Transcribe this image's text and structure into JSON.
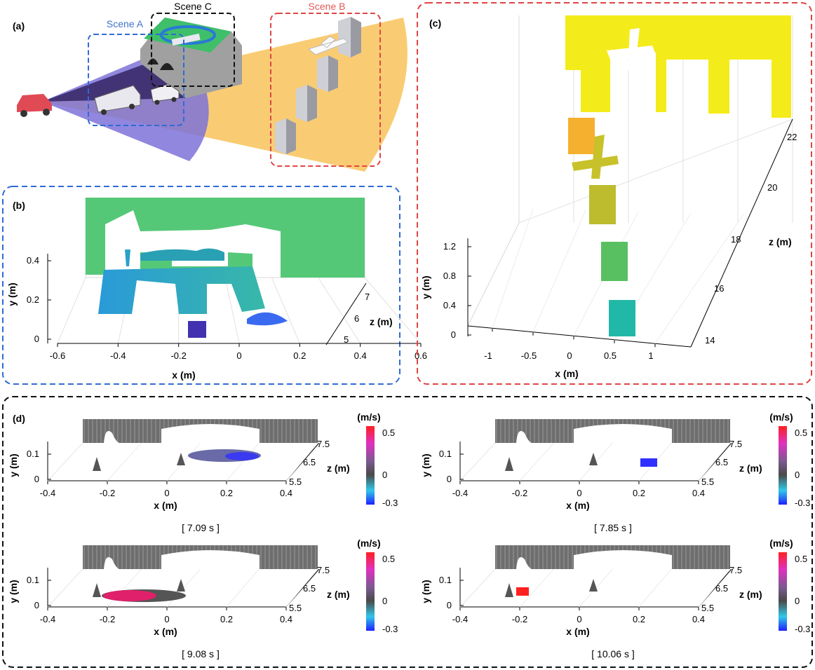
{
  "colors": {
    "blue_frame": "#2f6bd6",
    "red_frame": "#e04545",
    "black_frame": "#111111",
    "purple_beam": "#7e72d8",
    "yellow_beam": "#f8c35a",
    "scene_a_label": "#3f73cc",
    "scene_b_label": "#e05a5a"
  },
  "panel_a": {
    "tag": "(a)",
    "scene_a_label": "Scene A",
    "scene_b_label": "Scene B",
    "scene_c_label": "Scene C"
  },
  "panel_b": {
    "tag": "(b)",
    "chart_data": {
      "type": "scatter",
      "title": "",
      "xlabel": "x (m)",
      "ylabel": "y (m)",
      "zlabel": "z (m)",
      "x_ticks": [
        "-0.6",
        "-0.4",
        "-0.2",
        "0",
        "0.2",
        "0.4",
        "0.6"
      ],
      "y_ticks": [
        "0",
        "0.2",
        "0.4"
      ],
      "z_ticks": [
        "5",
        "6",
        "7"
      ],
      "xlim": [
        -0.65,
        0.7
      ],
      "ylim": [
        0,
        0.45
      ],
      "zlim": [
        4.8,
        7.2
      ],
      "grid": true
    }
  },
  "panel_c": {
    "tag": "(c)",
    "chart_data": {
      "type": "scatter",
      "title": "",
      "xlabel": "x (m)",
      "ylabel": "y (m)",
      "zlabel": "z (m)",
      "x_ticks": [
        "-1",
        "-0.5",
        "0",
        "0.5",
        "1"
      ],
      "y_ticks": [
        "0",
        "0.4",
        "0.8",
        "1.2"
      ],
      "z_ticks": [
        "14",
        "16",
        "18",
        "20",
        "22"
      ],
      "xlim": [
        -1.3,
        1.3
      ],
      "ylim": [
        0,
        1.3
      ],
      "zlim": [
        13.5,
        23
      ],
      "grid": true
    }
  },
  "panel_d": {
    "tag": "(d)",
    "colorbar_label": "(m/s)",
    "colorbar_ticks": [
      "0.5",
      "0",
      "-0.3"
    ],
    "colorbar_range": [
      -0.3,
      0.5
    ],
    "x_ticks": [
      "-0.4",
      "-0.2",
      "0",
      "0.2",
      "0.4"
    ],
    "y_ticks": [
      "0",
      "0.1"
    ],
    "z_ticks": [
      "5.5",
      "6.5",
      "7.5"
    ],
    "xlabel": "x (m)",
    "ylabel": "y (m)",
    "zlabel": "z (m)",
    "frames": [
      {
        "time": "[ 7.09 s ]"
      },
      {
        "time": "[ 7.85 s ]"
      },
      {
        "time": "[ 9.08 s ]"
      },
      {
        "time": "[ 10.06 s ]"
      }
    ]
  }
}
